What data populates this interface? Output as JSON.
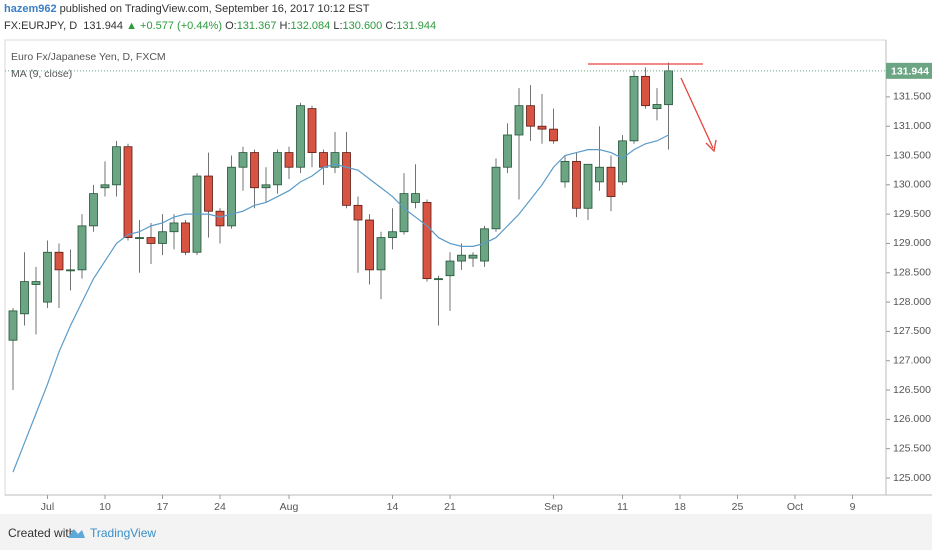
{
  "header": {
    "author": "hazem962",
    "published": "published on TradingView.com, September 16, 2017 10:12 EST",
    "symbol": "FX:EURJPY, D",
    "price": "131.944",
    "change": "▲ +0.577 (+0.44%)",
    "ohlc": [
      {
        "label": "O:",
        "value": "131.367"
      },
      {
        "label": "H:",
        "value": "132.084"
      },
      {
        "label": "L:",
        "value": "130.600"
      },
      {
        "label": "C:",
        "value": "131.944"
      }
    ]
  },
  "chart_data": {
    "type": "candlestick",
    "categories": [
      null,
      null,
      null,
      "Jul",
      null,
      null,
      null,
      null,
      "10",
      null,
      null,
      null,
      null,
      "17",
      null,
      null,
      null,
      null,
      "24",
      null,
      null,
      null,
      null,
      null,
      "Aug",
      null,
      null,
      null,
      null,
      null,
      null,
      null,
      null,
      "14",
      null,
      null,
      null,
      null,
      "21",
      null,
      null,
      null,
      null,
      null,
      null,
      null,
      null,
      "Sep",
      null,
      null,
      null,
      null,
      null,
      "11",
      null,
      null,
      null,
      null,
      "18",
      null,
      null,
      null,
      null,
      "25",
      null,
      null,
      null,
      null,
      "Oct",
      null,
      null,
      null,
      null,
      "9"
    ],
    "series": [
      {
        "name": "Euro Fx/Japanese Yen, D, FXCM",
        "up_color": "#6ba583",
        "down_color": "#d75442",
        "open": [
          127.35,
          127.8,
          128.3,
          128.0,
          128.85,
          128.55,
          128.55,
          129.3,
          129.95,
          130.0,
          130.65,
          129.1,
          129.1,
          129.0,
          129.2,
          129.35,
          128.85,
          130.15,
          129.55,
          129.3,
          130.3,
          130.55,
          129.95,
          130.0,
          130.55,
          130.3,
          131.3,
          130.55,
          130.3,
          130.55,
          129.65,
          129.4,
          128.55,
          129.1,
          129.2,
          129.7,
          129.7,
          128.4,
          128.45,
          128.7,
          128.75,
          128.7,
          129.25,
          130.3,
          130.85,
          131.35,
          131.0,
          130.95,
          130.05,
          130.4,
          129.6,
          130.05,
          130.3,
          130.05,
          130.75,
          131.85,
          131.3,
          131.367,
          null,
          null,
          null,
          null,
          null,
          null,
          null,
          null,
          null,
          null,
          null,
          null,
          null,
          null,
          null,
          null
        ],
        "high": [
          127.9,
          128.85,
          128.6,
          129.05,
          129.0,
          128.9,
          129.5,
          130.0,
          130.4,
          130.75,
          130.7,
          129.4,
          129.35,
          129.5,
          129.5,
          129.4,
          130.2,
          130.55,
          129.6,
          130.5,
          130.65,
          130.6,
          130.3,
          130.6,
          130.65,
          131.4,
          131.35,
          130.6,
          130.9,
          130.9,
          129.8,
          129.5,
          129.2,
          129.6,
          130.2,
          130.35,
          129.75,
          128.45,
          128.85,
          129.0,
          128.85,
          129.3,
          130.45,
          131.05,
          131.65,
          131.7,
          131.55,
          131.3,
          130.5,
          130.55,
          130.35,
          131.0,
          130.5,
          130.85,
          131.95,
          132.0,
          131.65,
          132.084,
          null,
          null,
          null,
          null,
          null,
          null,
          null,
          null,
          null,
          null,
          null,
          null,
          null,
          null,
          null,
          null
        ],
        "low": [
          126.5,
          127.6,
          127.45,
          127.9,
          127.9,
          128.2,
          128.4,
          129.2,
          129.8,
          129.8,
          129.05,
          128.5,
          128.65,
          128.8,
          128.9,
          128.8,
          128.8,
          129.1,
          129.0,
          129.25,
          129.9,
          129.6,
          129.7,
          129.85,
          130.1,
          130.2,
          130.3,
          130.0,
          130.2,
          129.6,
          128.5,
          128.3,
          128.05,
          128.9,
          129.15,
          129.6,
          128.35,
          127.6,
          127.85,
          128.55,
          128.6,
          128.6,
          129.2,
          130.2,
          129.75,
          130.75,
          130.7,
          130.7,
          129.95,
          129.45,
          129.4,
          129.9,
          129.55,
          130.0,
          130.7,
          131.3,
          131.1,
          130.6,
          null,
          null,
          null,
          null,
          null,
          null,
          null,
          null,
          null,
          null,
          null,
          null,
          null,
          null,
          null,
          null
        ],
        "close": [
          127.85,
          128.35,
          128.35,
          128.85,
          128.55,
          128.55,
          129.3,
          129.85,
          130.0,
          130.65,
          129.1,
          129.1,
          129.0,
          129.2,
          129.35,
          128.85,
          130.15,
          129.55,
          129.3,
          130.3,
          130.55,
          129.95,
          130.0,
          130.55,
          130.3,
          131.35,
          130.55,
          130.3,
          130.55,
          129.65,
          129.4,
          128.55,
          129.1,
          129.2,
          129.85,
          129.85,
          128.4,
          128.4,
          128.7,
          128.8,
          128.8,
          129.25,
          130.3,
          130.85,
          131.35,
          131.0,
          130.95,
          130.75,
          130.4,
          129.6,
          130.35,
          130.3,
          129.8,
          130.75,
          131.85,
          131.35,
          131.37,
          131.944,
          null,
          null,
          null,
          null,
          null,
          null,
          null,
          null,
          null,
          null,
          null,
          null,
          null,
          null,
          null,
          null
        ]
      },
      {
        "name": "MA (9, close)",
        "color": "#5b9bc8",
        "values": [
          125.1,
          125.6,
          126.1,
          126.6,
          127.15,
          127.6,
          128.0,
          128.4,
          128.7,
          129.0,
          129.15,
          129.2,
          129.3,
          129.35,
          129.45,
          129.5,
          129.5,
          129.5,
          129.45,
          129.5,
          129.55,
          129.65,
          129.7,
          129.8,
          129.9,
          130.05,
          130.15,
          130.3,
          130.35,
          130.3,
          130.25,
          130.1,
          129.95,
          129.8,
          129.6,
          129.45,
          129.3,
          129.1,
          129.0,
          128.95,
          128.95,
          129.0,
          129.1,
          129.3,
          129.5,
          129.75,
          130.0,
          130.3,
          130.5,
          130.55,
          130.6,
          130.6,
          130.55,
          130.45,
          130.6,
          130.7,
          130.75,
          130.85,
          null,
          null,
          null,
          null,
          null,
          null,
          null,
          null,
          null,
          null,
          null,
          null,
          null,
          null,
          null,
          null
        ]
      }
    ],
    "last_price": 131.944,
    "last_price_color": "#6ba583",
    "ylim": [
      124.71,
      132.47
    ],
    "yticks": [
      {
        "value": 125,
        "label": "125.000"
      },
      {
        "value": 125.5,
        "label": "125.500"
      },
      {
        "value": 126,
        "label": "126.000"
      },
      {
        "value": 126.5,
        "label": "126.500"
      },
      {
        "value": 127,
        "label": "127.000"
      },
      {
        "value": 127.5,
        "label": "127.500"
      },
      {
        "value": 128,
        "label": "128.000"
      },
      {
        "value": 128.5,
        "label": "128.500"
      },
      {
        "value": 129,
        "label": "129.000"
      },
      {
        "value": 129.5,
        "label": "129.500"
      },
      {
        "value": 130,
        "label": "130.000"
      },
      {
        "value": 130.5,
        "label": "130.500"
      },
      {
        "value": 131,
        "label": "131.000"
      },
      {
        "value": 131.5,
        "label": "131.500"
      }
    ],
    "grid": false
  },
  "footer": {
    "created": "Created with",
    "brand": "TradingView"
  }
}
